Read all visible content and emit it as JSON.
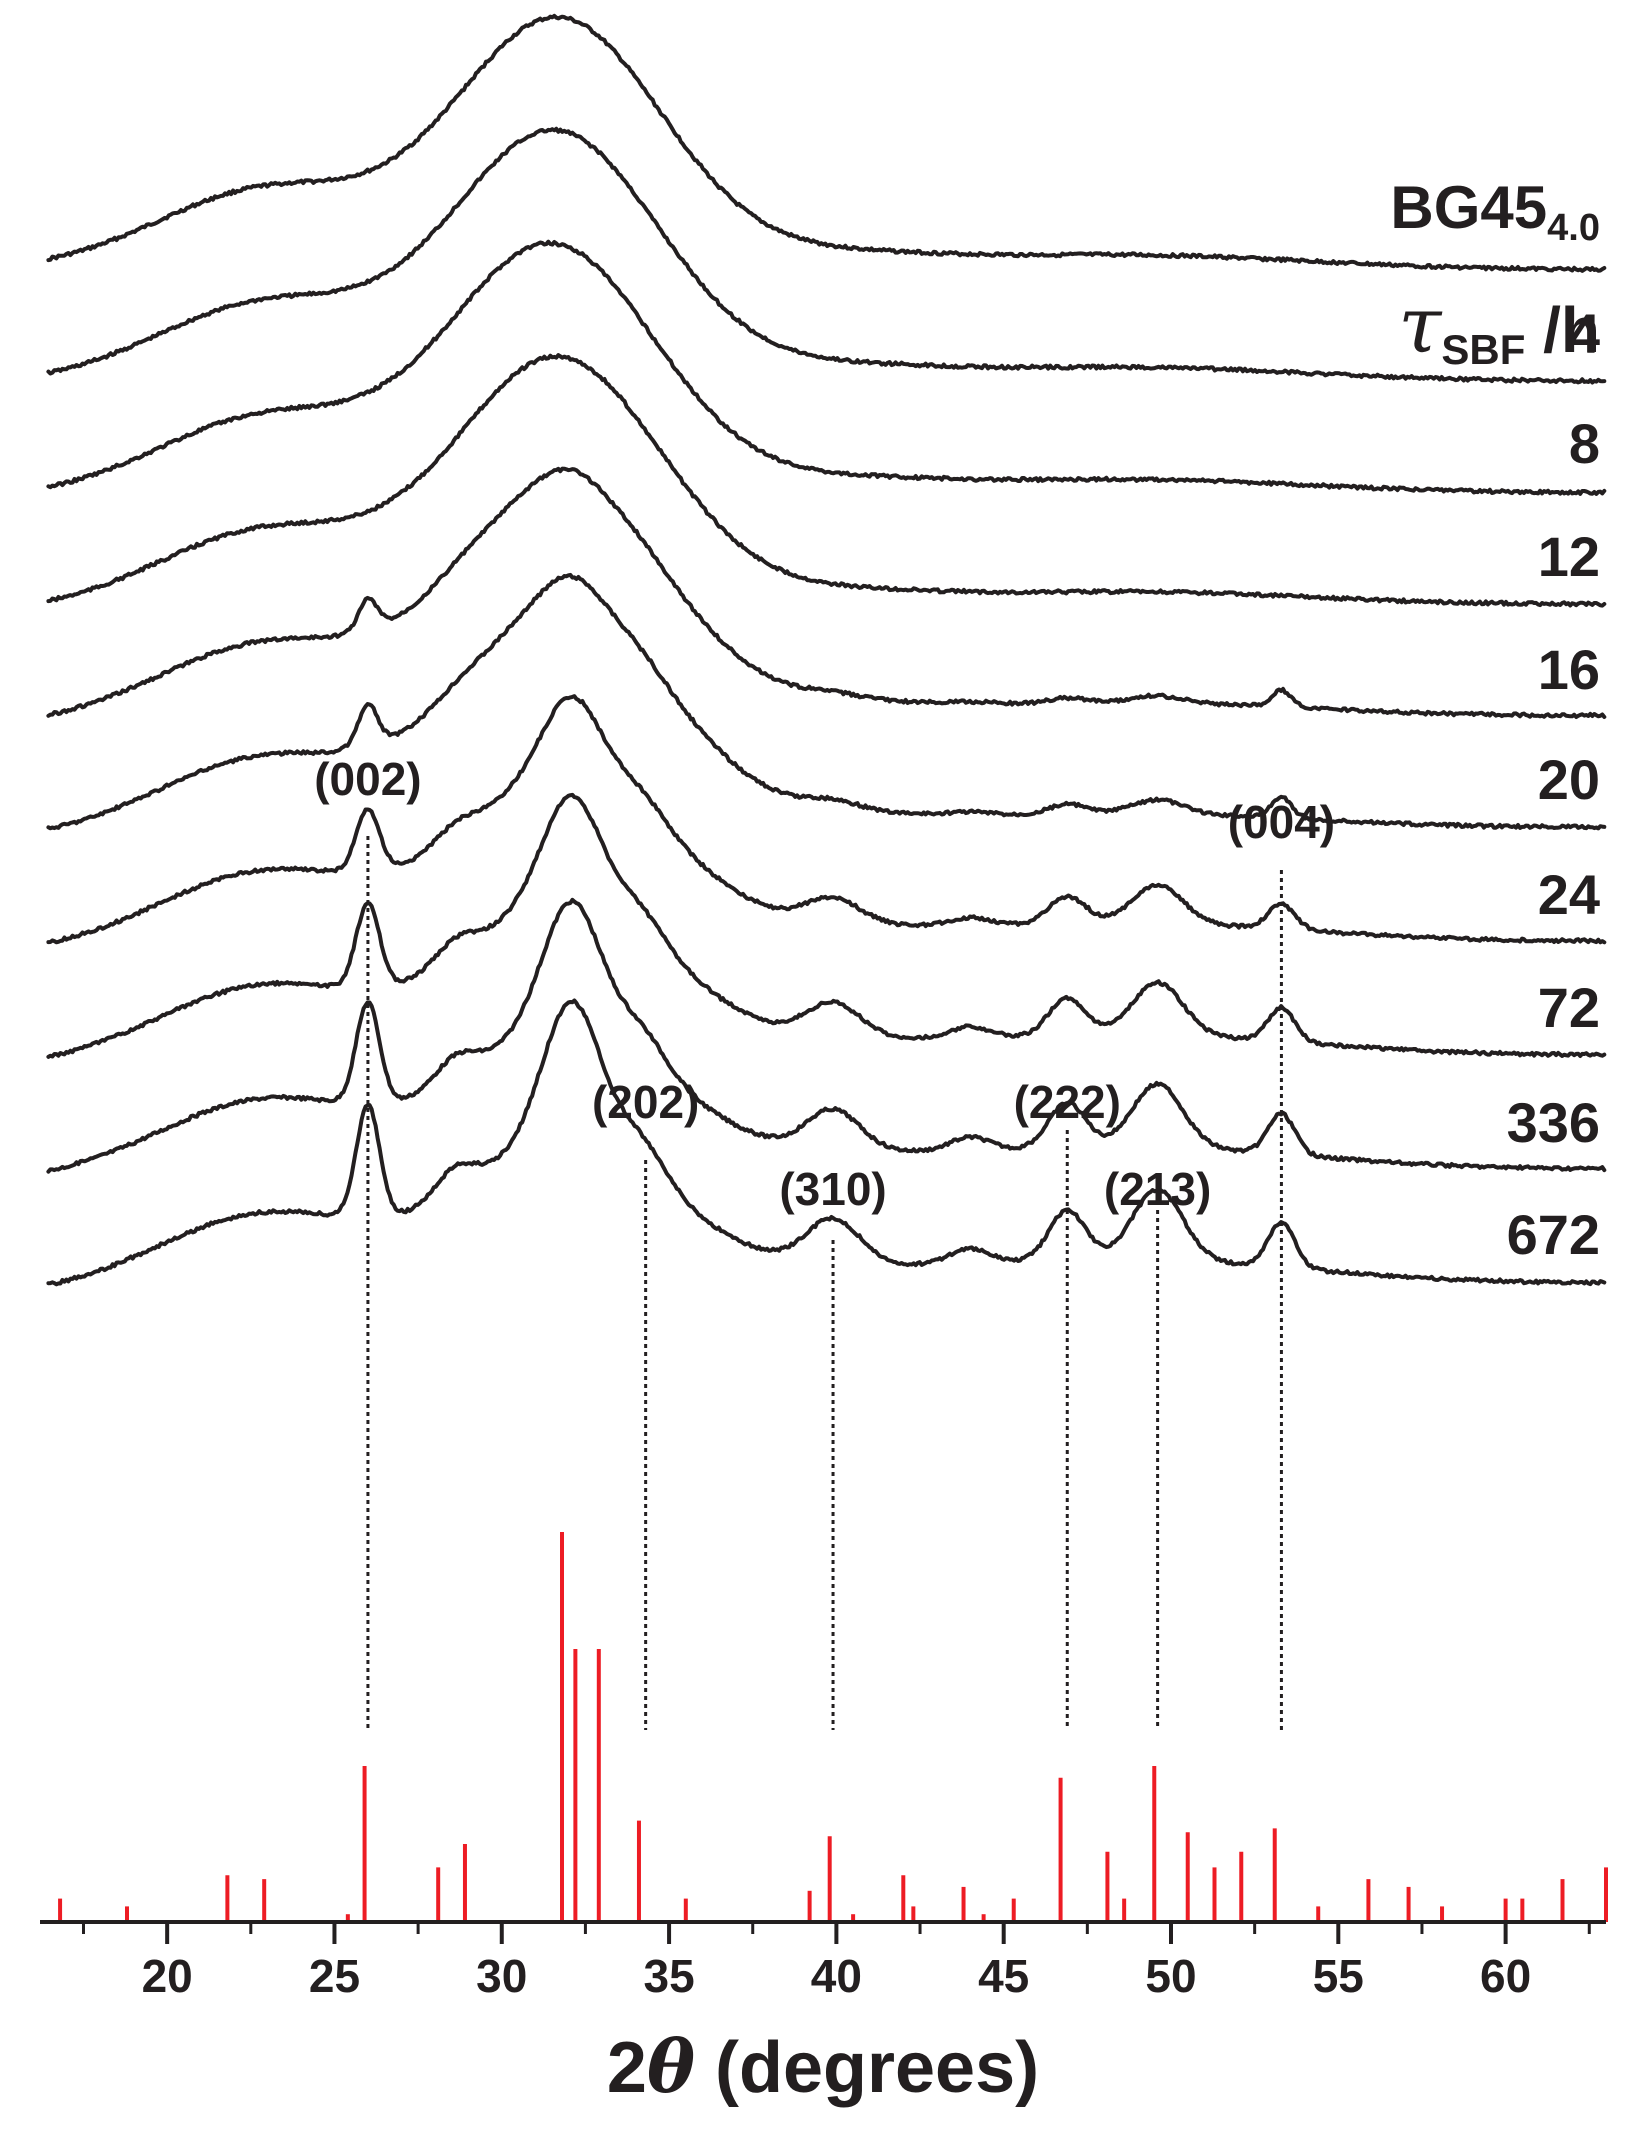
{
  "chart_data": {
    "type": "line",
    "xlabel": {
      "prefix": "2",
      "symbol": "θ",
      "suffix": " (degrees)"
    },
    "xlim": [
      16.2,
      63.0
    ],
    "x_ticks": [
      20,
      25,
      30,
      35,
      40,
      45,
      50,
      55,
      60
    ],
    "x_minor_step": 2.5,
    "y_ticks": "none",
    "header": {
      "sample": "BG45",
      "sample_sub": "4.0",
      "time_symbol": "τ",
      "time_sub": "SBF",
      "time_unit": " /h"
    },
    "series": [
      {
        "name": "BG45₄.₀",
        "label": "",
        "offset": 0,
        "amorph": 1.0,
        "crystal": 0.0,
        "shift": 0.0,
        "rise": 0.0
      },
      {
        "name": "4",
        "label": "4",
        "offset": 1,
        "amorph": 1.0,
        "crystal": 0.0,
        "shift": -0.1,
        "rise": 0.01
      },
      {
        "name": "8",
        "label": "8",
        "offset": 2,
        "amorph": 1.0,
        "crystal": 0.0,
        "shift": -0.2,
        "rise": 0.02
      },
      {
        "name": "12",
        "label": "12",
        "offset": 3,
        "amorph": 1.0,
        "crystal": 0.0,
        "shift": 0.0,
        "rise": 0.03
      },
      {
        "name": "16",
        "label": "16",
        "offset": 4,
        "amorph": 0.95,
        "crystal": 0.1,
        "shift": 0.1,
        "rise": 0.04
      },
      {
        "name": "20",
        "label": "20",
        "offset": 5,
        "amorph": 0.92,
        "crystal": 0.2,
        "shift": 0.2,
        "rise": 0.05
      },
      {
        "name": "24",
        "label": "24",
        "offset": 6,
        "amorph": 0.7,
        "crystal": 0.55,
        "shift": 0.3,
        "rise": 0.05
      },
      {
        "name": "72",
        "label": "72",
        "offset": 7,
        "amorph": 0.65,
        "crystal": 0.75,
        "shift": 0.3,
        "rise": 0.05
      },
      {
        "name": "336",
        "label": "336",
        "offset": 8,
        "amorph": 0.6,
        "crystal": 0.9,
        "shift": 0.3,
        "rise": 0.05
      },
      {
        "name": "672",
        "label": "672",
        "offset": 9,
        "amorph": 0.6,
        "crystal": 1.0,
        "shift": 0.3,
        "rise": 0.05
      }
    ],
    "reflections": [
      {
        "label": "(002)",
        "x": 26.0
      },
      {
        "label": "(202)",
        "x": 34.3
      },
      {
        "label": "(310)",
        "x": 39.9
      },
      {
        "label": "(222)",
        "x": 46.9
      },
      {
        "label": "(213)",
        "x": 49.6
      },
      {
        "label": "(004)",
        "x": 53.3
      }
    ],
    "reference_pattern": {
      "positions": [
        16.8,
        18.8,
        21.8,
        22.9,
        25.4,
        25.9,
        28.1,
        28.9,
        31.8,
        32.2,
        32.9,
        34.1,
        35.5,
        39.2,
        39.8,
        40.5,
        42.0,
        42.3,
        43.8,
        44.4,
        45.3,
        46.7,
        48.1,
        48.6,
        49.5,
        50.5,
        51.3,
        52.1,
        53.1,
        54.4,
        55.9,
        57.1,
        58.1,
        60.0,
        60.5,
        61.7,
        63.0
      ],
      "intensities": [
        6,
        4,
        12,
        11,
        2,
        40,
        14,
        20,
        100,
        70,
        70,
        26,
        6,
        8,
        22,
        2,
        12,
        4,
        9,
        2,
        6,
        37,
        18,
        6,
        40,
        23,
        14,
        18,
        24,
        4,
        11,
        9,
        4,
        6,
        6,
        11,
        14
      ]
    }
  }
}
